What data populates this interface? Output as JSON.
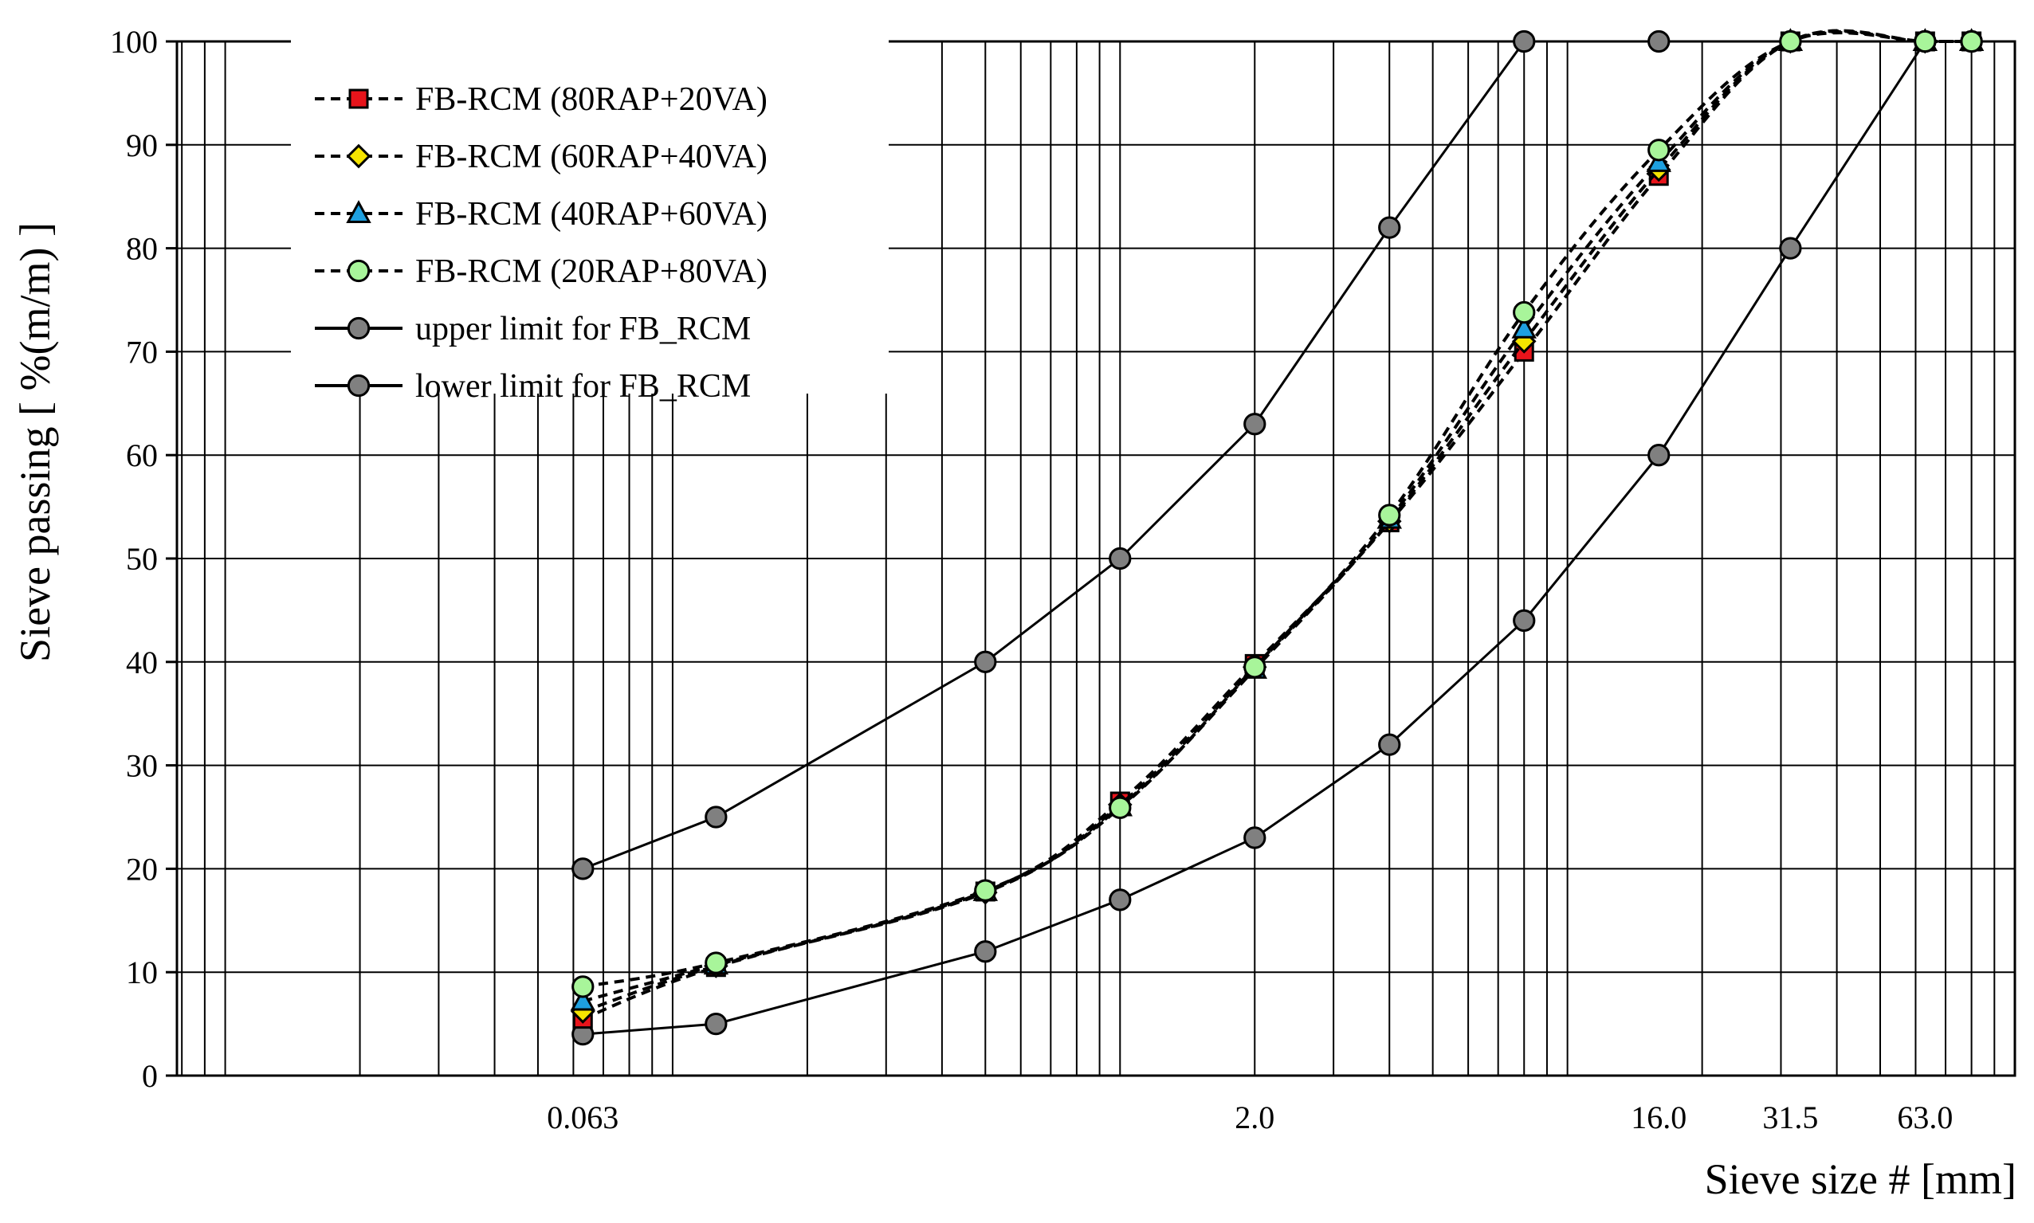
{
  "chart_data": {
    "type": "line",
    "xlabel": "Sieve size # [mm]",
    "ylabel": "Sieve passing [ %(m/m) ]",
    "x_scale": "log",
    "ylim": [
      0,
      100
    ],
    "y_ticks": [
      0,
      10,
      20,
      30,
      40,
      50,
      60,
      70,
      80,
      90,
      100
    ],
    "x_tick_labels": [
      {
        "value": 0.063,
        "label": "0.063"
      },
      {
        "value": 2.0,
        "label": "2.0"
      },
      {
        "value": 16.0,
        "label": "16.0"
      },
      {
        "value": 31.5,
        "label": "31.5"
      },
      {
        "value": 63.0,
        "label": "63.0"
      }
    ],
    "grid": true,
    "legend_position": "top-left",
    "series": [
      {
        "name": "FB-RCM (80RAP+20VA)",
        "style": "dashed",
        "marker": "square",
        "color": "#e8141b",
        "x": [
          0.063,
          0.125,
          0.5,
          1.0,
          2.0,
          4.0,
          8.0,
          16.0,
          31.5,
          63.0,
          80.0
        ],
        "y": [
          5.5,
          10.5,
          17.8,
          26.5,
          39.8,
          53.5,
          70.0,
          87.0,
          100,
          100,
          100
        ]
      },
      {
        "name": "FB-RCM (60RAP+40VA)",
        "style": "dashed",
        "marker": "diamond",
        "color": "#f5e400",
        "x": [
          0.063,
          0.125,
          0.5,
          1.0,
          2.0,
          4.0,
          8.0,
          16.0,
          31.5,
          63.0,
          80.0
        ],
        "y": [
          6.2,
          10.6,
          17.7,
          26.2,
          39.5,
          53.6,
          71.0,
          87.6,
          100,
          100,
          100
        ]
      },
      {
        "name": "FB-RCM (40RAP+60VA)",
        "style": "dashed",
        "marker": "triangle",
        "color": "#1ea0e0",
        "x": [
          0.063,
          0.125,
          0.5,
          1.0,
          2.0,
          4.0,
          8.0,
          16.0,
          31.5,
          63.0,
          80.0
        ],
        "y": [
          7.2,
          10.7,
          17.8,
          26.0,
          39.3,
          53.8,
          72.2,
          88.3,
          100,
          100,
          100
        ]
      },
      {
        "name": "FB-RCM (20RAP+80VA)",
        "style": "dashed",
        "marker": "circle",
        "color": "#a8f59a",
        "x": [
          0.063,
          0.125,
          0.5,
          1.0,
          2.0,
          4.0,
          8.0,
          16.0,
          31.5,
          63.0,
          80.0
        ],
        "y": [
          8.6,
          10.9,
          17.9,
          25.9,
          39.5,
          54.2,
          73.8,
          89.5,
          100,
          100,
          100
        ]
      },
      {
        "name": "upper limit for FB_RCM",
        "style": "solid",
        "marker": "circle",
        "color": "#808080",
        "x": [
          0.063,
          0.125,
          0.5,
          1.0,
          2.0,
          4.0,
          8.0,
          16.0,
          31.5,
          63.0,
          80.0
        ],
        "y": [
          20,
          25,
          40,
          50,
          63,
          82,
          100,
          100,
          100,
          100,
          100
        ]
      },
      {
        "name": "lower limit for FB_RCM",
        "style": "solid",
        "marker": "circle",
        "color": "#808080",
        "x": [
          0.063,
          0.125,
          0.5,
          1.0,
          2.0,
          4.0,
          8.0,
          16.0,
          31.5,
          63.0,
          80.0
        ],
        "y": [
          4,
          5,
          12,
          17,
          23,
          32,
          44,
          60,
          80,
          100,
          100
        ]
      }
    ]
  }
}
